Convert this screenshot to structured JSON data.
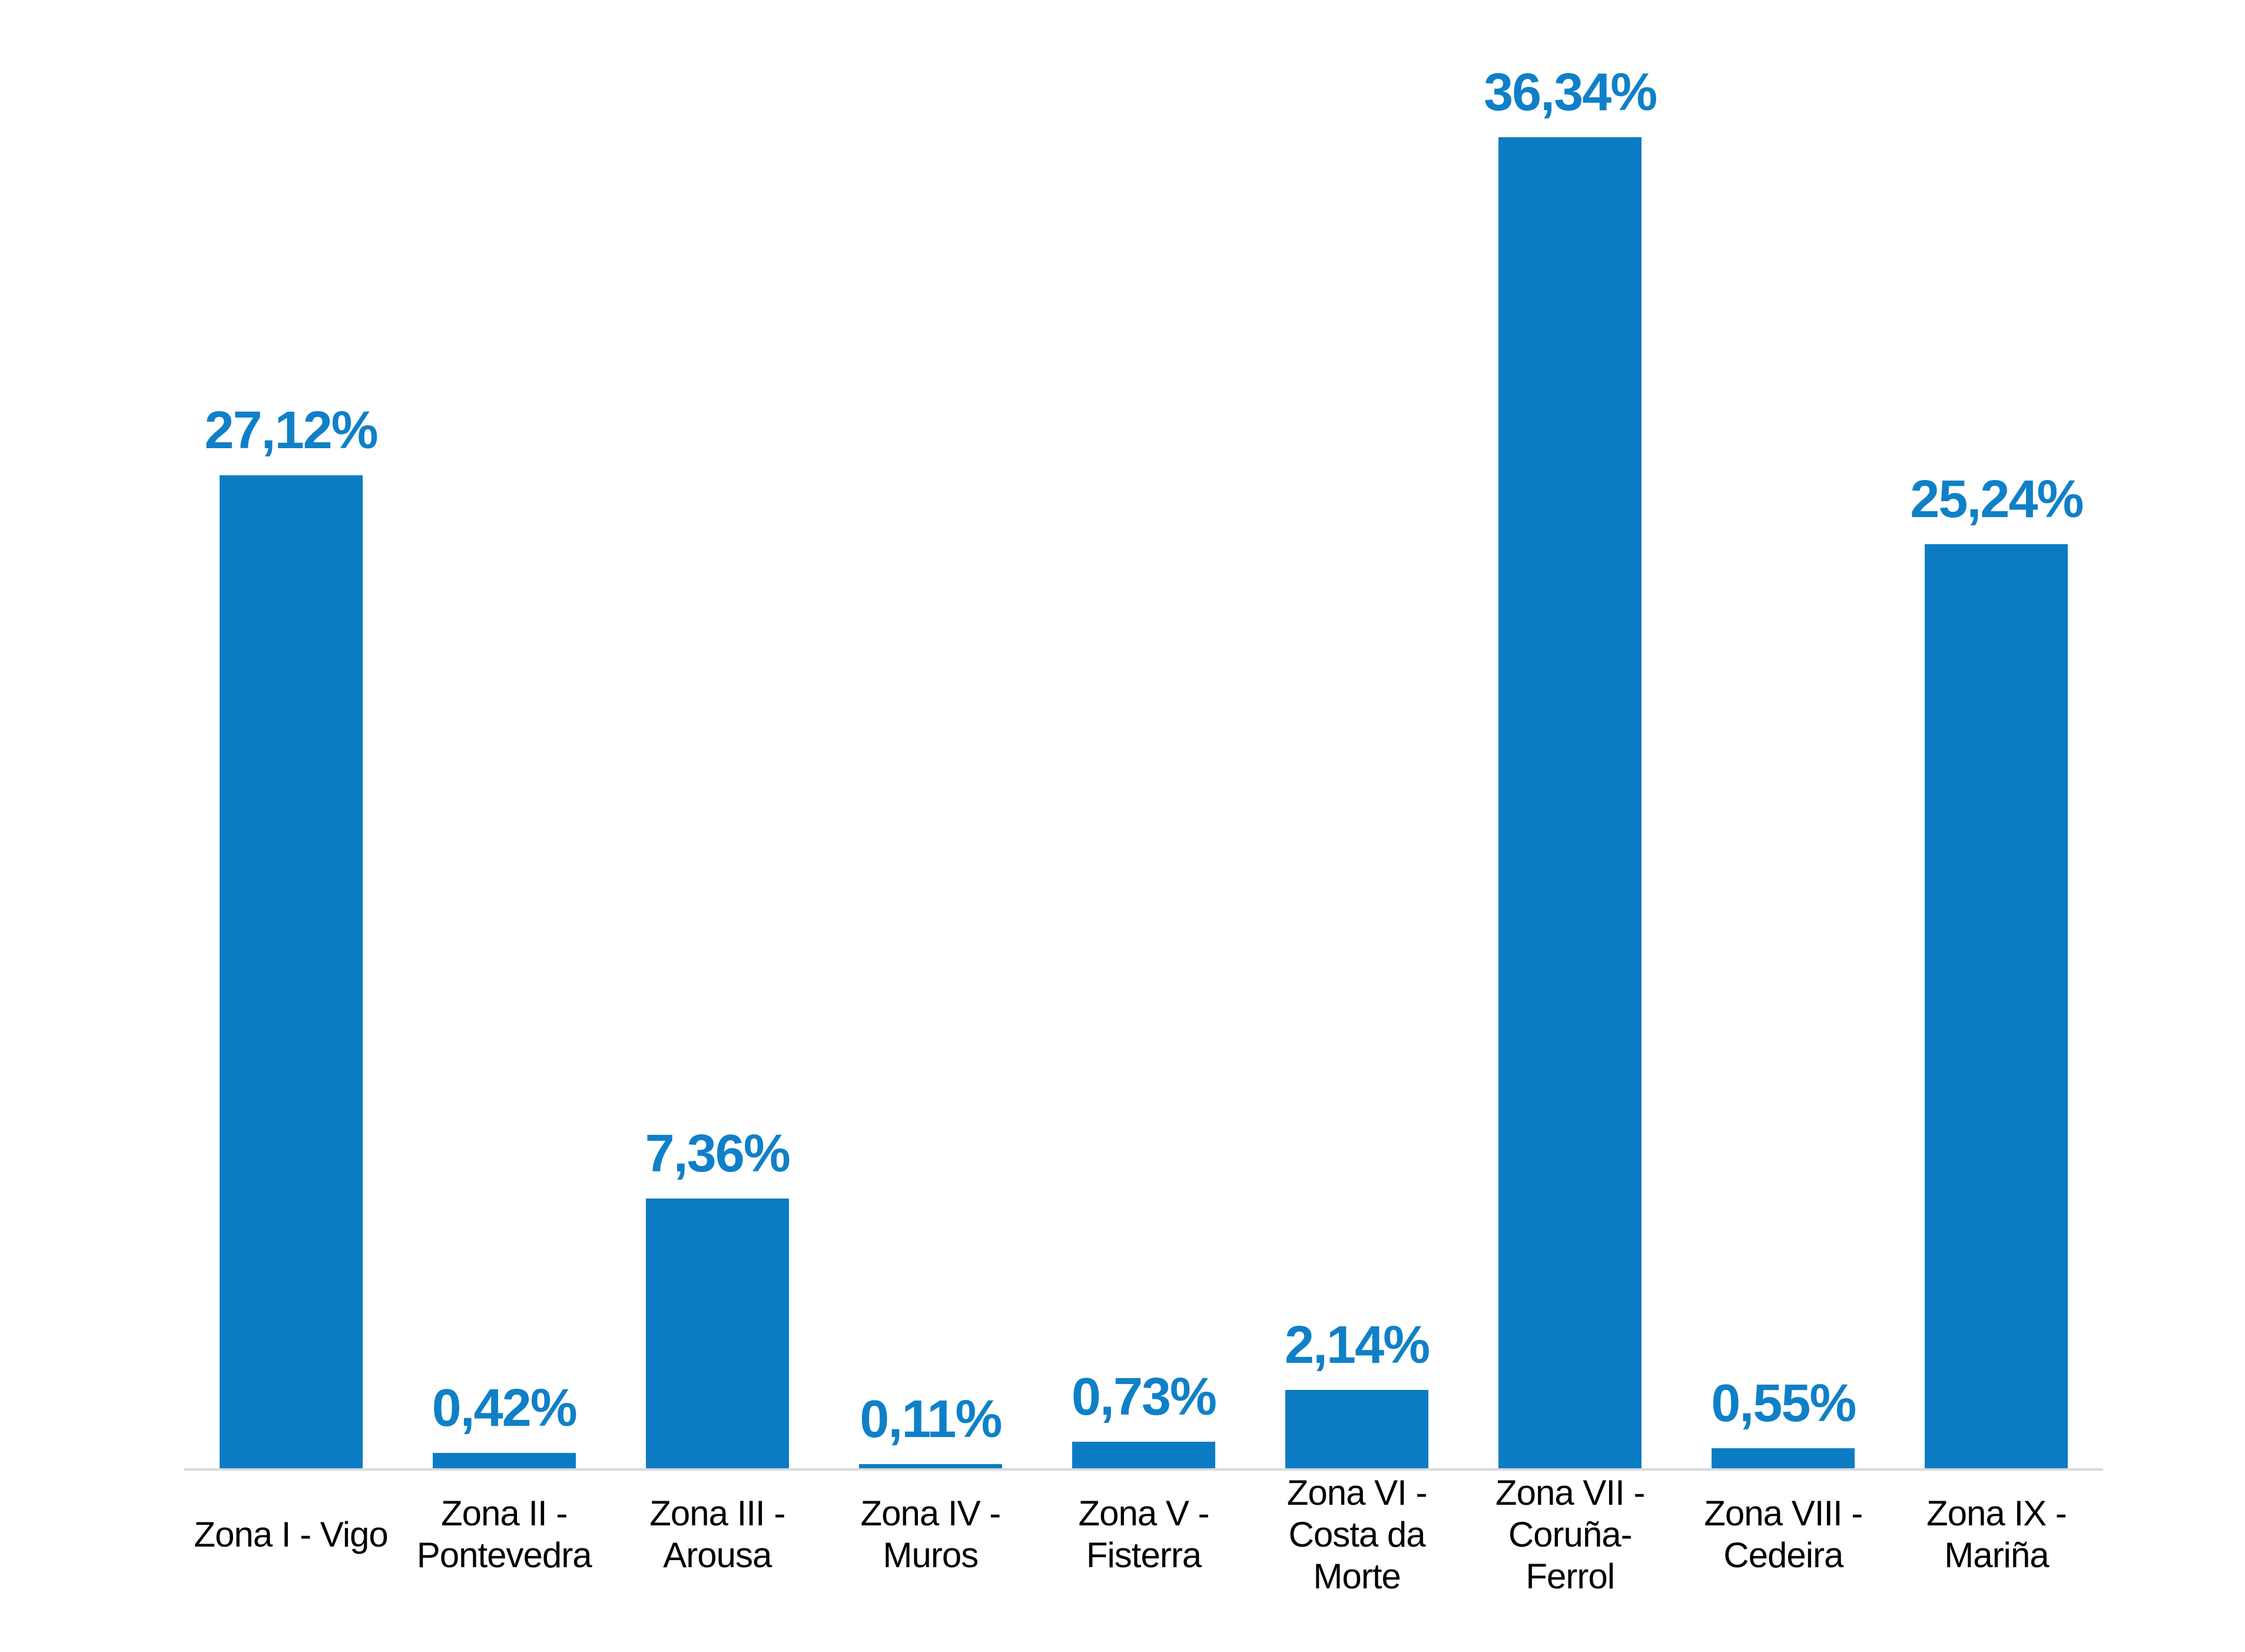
{
  "chart_data": {
    "type": "bar",
    "title": "",
    "xlabel": "",
    "ylabel": "",
    "categories": [
      "Zona I - Vigo",
      "Zona II - Pontevedra",
      "Zona III - Arousa",
      "Zona IV - Muros",
      "Zona V - Fisterra",
      "Zona VI - Costa da Morte",
      "Zona VII - Coruña-Ferrol",
      "Zona VIII - Cedeira",
      "Zona IX - Mariña"
    ],
    "category_lines": [
      [
        "Zona I - Vigo"
      ],
      [
        "Zona II -",
        "Pontevedra"
      ],
      [
        "Zona III -",
        "Arousa"
      ],
      [
        "Zona IV -",
        "Muros"
      ],
      [
        "Zona V -",
        "Fisterra"
      ],
      [
        "Zona VI -",
        "Costa da",
        "Morte"
      ],
      [
        "Zona VII -",
        "Coruña-",
        "Ferrol"
      ],
      [
        "Zona VIII -",
        "Cedeira"
      ],
      [
        "Zona IX -",
        "Mariña"
      ]
    ],
    "values": [
      27.12,
      0.42,
      7.36,
      0.11,
      0.73,
      2.14,
      36.34,
      0.55,
      25.24
    ],
    "value_labels": [
      "27,12%",
      "0,42%",
      "7,36%",
      "0,11%",
      "0,73%",
      "2,14%",
      "36,34%",
      "0,55%",
      "25,24%"
    ],
    "ylim": [
      0,
      40
    ],
    "grid": false,
    "legend": "none",
    "y_axis_visible": false,
    "bar_color": "#0b7cc4",
    "value_label_color": "#0f80c8",
    "category_label_color": "#000000",
    "axis_line_color": "#d9d9d9"
  }
}
